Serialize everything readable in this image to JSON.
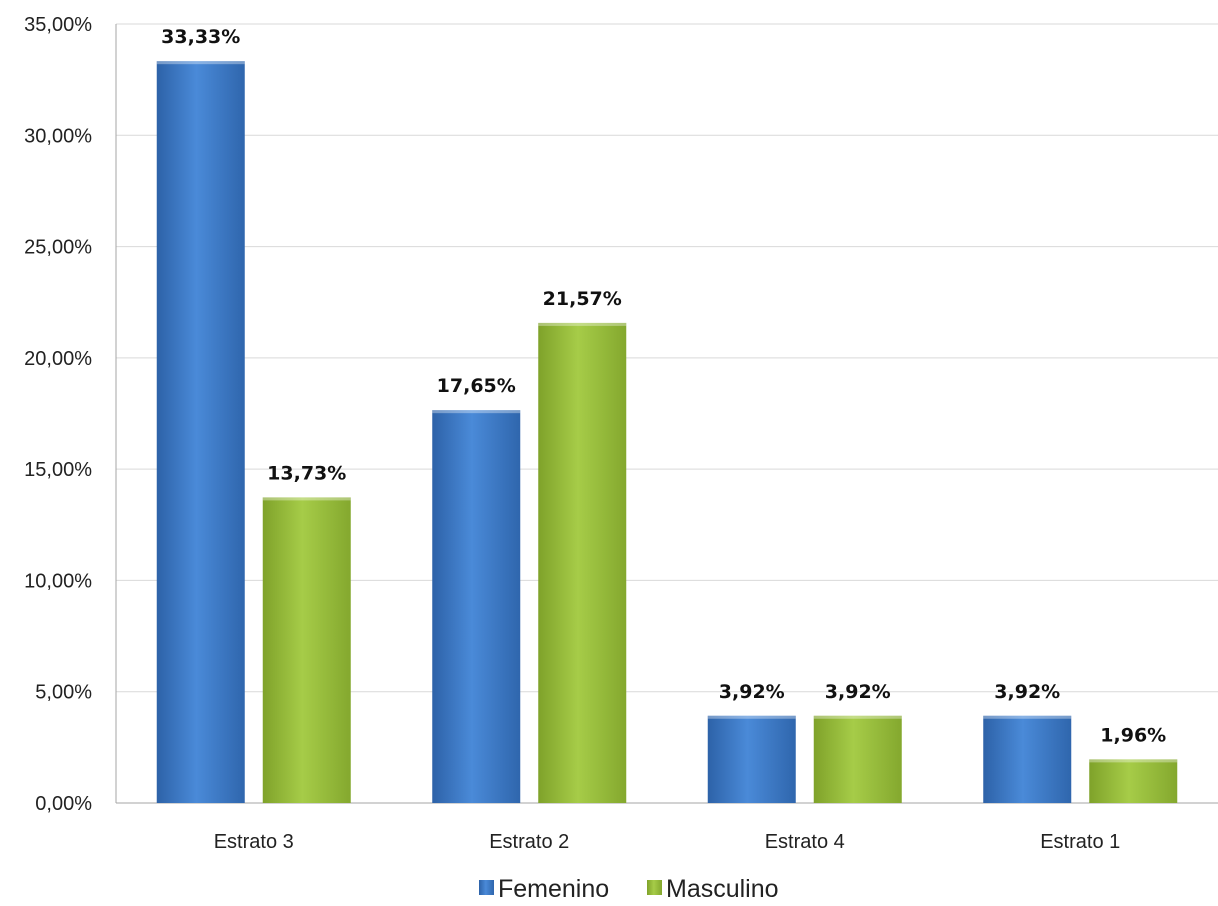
{
  "chart_data": {
    "type": "bar",
    "categories": [
      "Estrato 3",
      "Estrato 2",
      "Estrato 4",
      "Estrato 1"
    ],
    "series": [
      {
        "name": "Femenino",
        "values": [
          33.33,
          17.65,
          3.92,
          3.92
        ],
        "labels": [
          "33,33%",
          "17,65%",
          "3,92%",
          "3,92%"
        ],
        "color": "#3f7fd0"
      },
      {
        "name": "Masculino",
        "values": [
          13.73,
          21.57,
          3.92,
          1.96
        ],
        "labels": [
          "13,73%",
          "21,57%",
          "3,92%",
          "1,96%"
        ],
        "color": "#9bc13c"
      }
    ],
    "y_ticks": [
      {
        "value": 0,
        "label": "0,00%"
      },
      {
        "value": 5,
        "label": "5,00%"
      },
      {
        "value": 10,
        "label": "10,00%"
      },
      {
        "value": 15,
        "label": "15,00%"
      },
      {
        "value": 20,
        "label": "20,00%"
      },
      {
        "value": 25,
        "label": "25,00%"
      },
      {
        "value": 30,
        "label": "30,00%"
      },
      {
        "value": 35,
        "label": "35,00%"
      }
    ],
    "ylim": [
      0,
      35
    ],
    "grid": true,
    "legend": "bottom"
  }
}
